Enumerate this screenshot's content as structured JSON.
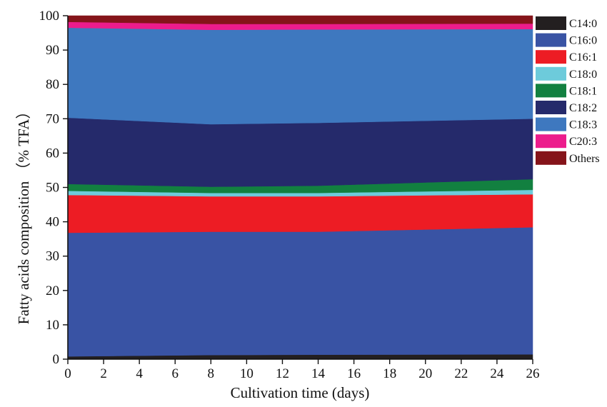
{
  "chart_data": {
    "type": "area",
    "stacked": true,
    "title": "",
    "xlabel": "Cultivation time (days)",
    "ylabel": "Fatty acids composition （% TFA）",
    "xlim": [
      0,
      26
    ],
    "ylim": [
      0,
      100
    ],
    "xticks": [
      "0",
      "2",
      "4",
      "6",
      "8",
      "10",
      "12",
      "14",
      "16",
      "18",
      "20",
      "22",
      "24",
      "26"
    ],
    "yticks": [
      "0",
      "10",
      "20",
      "30",
      "40",
      "50",
      "60",
      "70",
      "80",
      "90",
      "100"
    ],
    "grid": false,
    "legend_position": "right",
    "x": [
      0,
      8,
      14,
      26
    ],
    "series": [
      {
        "name": "C14:0",
        "color": "#231f20",
        "values": [
          0.8,
          1.2,
          1.3,
          1.4
        ]
      },
      {
        "name": "C16:0",
        "color": "#3953a4",
        "values": [
          36.0,
          35.9,
          35.8,
          37.0
        ]
      },
      {
        "name": "C16:1",
        "color": "#ed1c24",
        "values": [
          11.0,
          10.3,
          10.3,
          9.6
        ]
      },
      {
        "name": "C18:0",
        "color": "#6dcbdb",
        "values": [
          1.2,
          1.0,
          1.0,
          1.3
        ]
      },
      {
        "name": "C18:1",
        "color": "#128040",
        "values": [
          2.0,
          1.8,
          2.1,
          3.1
        ]
      },
      {
        "name": "C18:2",
        "color": "#252a6b",
        "values": [
          19.3,
          18.2,
          18.3,
          17.6
        ]
      },
      {
        "name": "C18:3",
        "color": "#3e78bf",
        "values": [
          26.2,
          27.5,
          27.2,
          26.1
        ]
      },
      {
        "name": "C20:3",
        "color": "#ec1c8c",
        "values": [
          1.7,
          1.7,
          1.6,
          1.6
        ]
      },
      {
        "name": "Others",
        "color": "#85141a",
        "values": [
          1.8,
          2.4,
          2.4,
          2.3
        ]
      }
    ]
  }
}
